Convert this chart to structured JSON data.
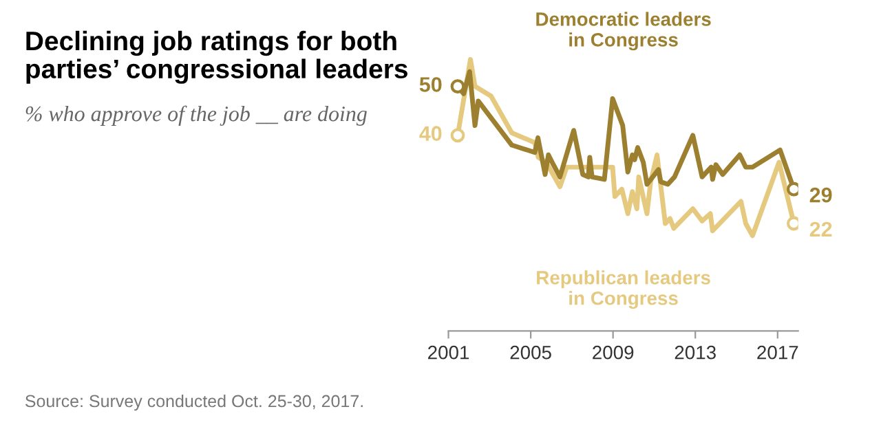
{
  "chart_data": {
    "type": "line",
    "title": "Declining job ratings for both\nparties’ congressional leaders",
    "subtitle": "% who approve of the job __ are doing",
    "annotations": [
      "Source: Survey conducted Oct. 25-30, 2017."
    ],
    "series": [
      {
        "name": "Democratic leaders\nin Congress",
        "color": "#9c7f2f",
        "x": [
          2001.45,
          2001.74,
          2002.03,
          2002.29,
          2002.45,
          2004.08,
          2005.2,
          2005.35,
          2005.7,
          2005.86,
          2006.04,
          2006.42,
          2007.09,
          2007.53,
          2007.8,
          2007.87,
          2007.98,
          2008.58,
          2008.98,
          2009.47,
          2009.72,
          2009.94,
          2010.05,
          2010.2,
          2010.47,
          2010.65,
          2011.21,
          2011.32,
          2011.66,
          2011.99,
          2012.88,
          2013.33,
          2013.77,
          2013.84,
          2014.0,
          2014.33,
          2015.16,
          2015.45,
          2015.78,
          2017.12,
          2017.79
        ],
        "values": [
          50,
          48.5,
          53,
          42,
          47,
          38,
          36.5,
          39.5,
          32,
          36,
          34.5,
          31.5,
          41,
          32,
          31.5,
          35.5,
          31.5,
          31,
          47.5,
          42,
          32.5,
          36,
          35,
          37.5,
          34.5,
          30,
          33,
          30.5,
          30,
          31.5,
          40,
          31.5,
          33.5,
          31,
          34,
          32,
          36,
          33.5,
          33.5,
          37,
          29
        ],
        "value_labels": [
          "50",
          null,
          null,
          null,
          null,
          null,
          null,
          null,
          null,
          null,
          null,
          null,
          null,
          null,
          null,
          null,
          null,
          null,
          null,
          null,
          null,
          null,
          null,
          null,
          null,
          null,
          null,
          null,
          null,
          null,
          null,
          null,
          null,
          null,
          null,
          null,
          null,
          null,
          null,
          null,
          "29"
        ]
      },
      {
        "name": "Republican leaders\nin Congress",
        "color": "#e5c97f",
        "x": [
          2001.45,
          2002.07,
          2002.29,
          2003.07,
          2004.08,
          2005.2,
          2005.37,
          2005.75,
          2006.42,
          2006.75,
          2008.98,
          2009.09,
          2009.43,
          2009.72,
          2009.94,
          2010.16,
          2010.25,
          2010.65,
          2010.83,
          2011.14,
          2011.54,
          2011.77,
          2011.95,
          2012.88,
          2013.33,
          2013.73,
          2013.84,
          2015.22,
          2015.45,
          2015.78,
          2017.07,
          2017.79
        ],
        "values": [
          40,
          55.5,
          50,
          48,
          40.5,
          38.5,
          35.5,
          34.5,
          29.5,
          33.5,
          33.5,
          27.5,
          29,
          24,
          28.5,
          25,
          31.5,
          24,
          30.5,
          36,
          22,
          23,
          21,
          25,
          22.5,
          24,
          20.5,
          26.5,
          22,
          19.5,
          34.5,
          22
        ],
        "value_labels": [
          "40",
          null,
          null,
          null,
          null,
          null,
          null,
          null,
          null,
          null,
          null,
          null,
          null,
          null,
          null,
          null,
          null,
          null,
          null,
          null,
          null,
          null,
          null,
          null,
          null,
          null,
          null,
          null,
          null,
          null,
          null,
          "22"
        ]
      }
    ],
    "xlim": [
      2001,
      2018
    ],
    "xticks": [
      2001,
      2005,
      2009,
      2013,
      2017
    ],
    "tick_labels": "x",
    "grid": false,
    "legend": false
  }
}
